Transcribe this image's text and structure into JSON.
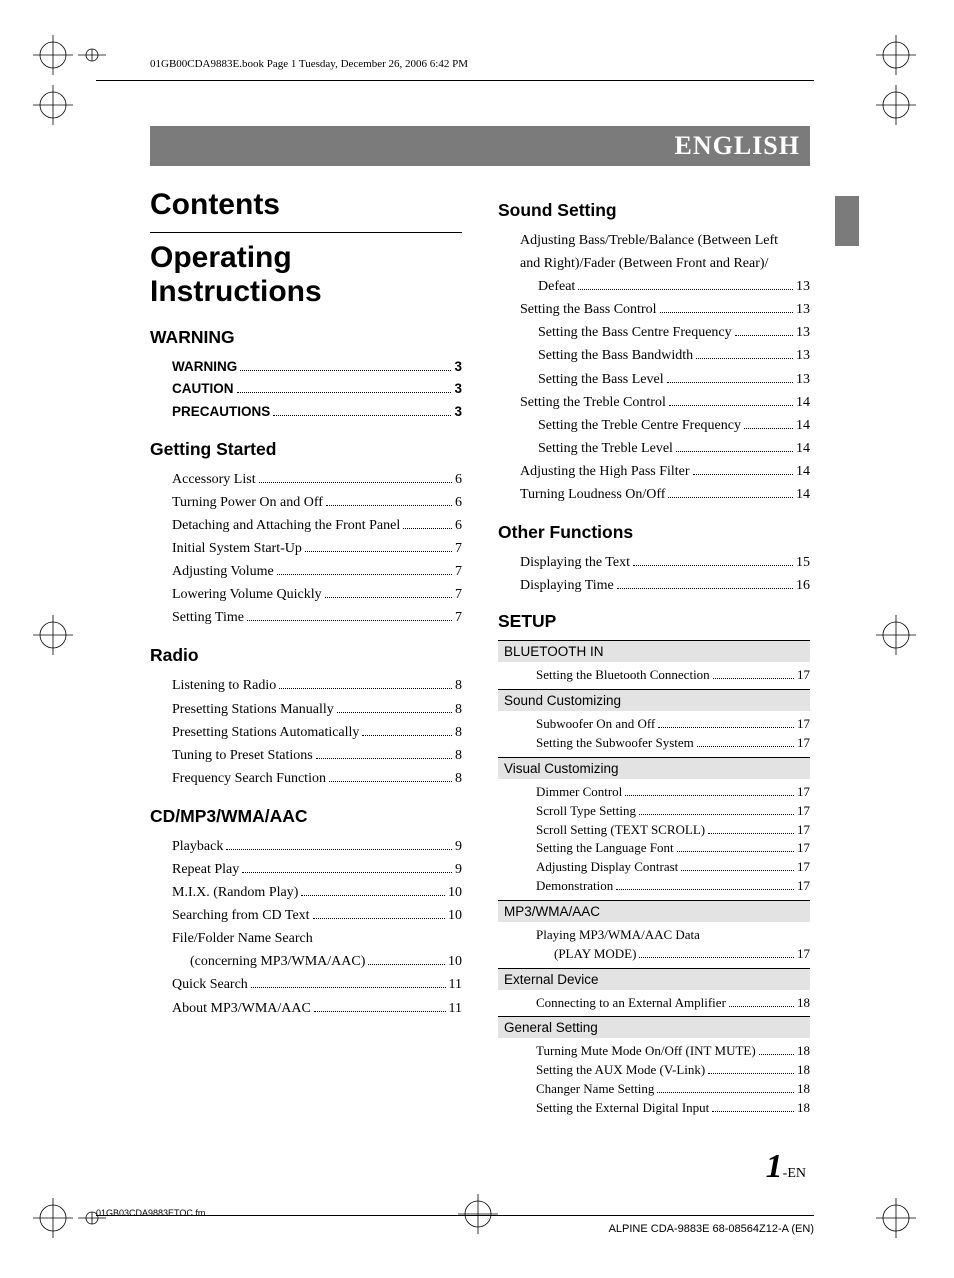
{
  "header_line": "01GB00CDA9883E.book  Page 1  Tuesday, December 26, 2006  6:42 PM",
  "english": "ENGLISH",
  "h_contents": "Contents",
  "h_op": "Operating Instructions",
  "footer_fn": "01GB03CDA9883ETOC.fm",
  "footer_model": "ALPINE CDA-9883E 68-08564Z12-A (EN)",
  "page_big": "1",
  "page_suf": "-EN",
  "left": [
    {
      "type": "sec",
      "label": "WARNING"
    },
    {
      "type": "toc",
      "rows": [
        {
          "bold": true,
          "txt": "WARNING",
          "pg": "3"
        },
        {
          "bold": true,
          "txt": "CAUTION",
          "pg": "3"
        },
        {
          "bold": true,
          "txt": "PRECAUTIONS",
          "pg": "3"
        }
      ]
    },
    {
      "type": "sec",
      "label": "Getting Started"
    },
    {
      "type": "toc",
      "rows": [
        {
          "txt": "Accessory List",
          "pg": "6"
        },
        {
          "txt": "Turning Power On and Off",
          "pg": "6"
        },
        {
          "txt": "Detaching and Attaching the Front Panel",
          "pg": "6"
        },
        {
          "txt": "Initial System Start-Up",
          "pg": "7"
        },
        {
          "txt": "Adjusting Volume",
          "pg": "7"
        },
        {
          "txt": "Lowering Volume Quickly",
          "pg": "7"
        },
        {
          "txt": "Setting Time",
          "pg": "7"
        }
      ]
    },
    {
      "type": "sec",
      "label": "Radio"
    },
    {
      "type": "toc",
      "rows": [
        {
          "txt": "Listening to Radio",
          "pg": "8"
        },
        {
          "txt": "Presetting Stations Manually",
          "pg": "8"
        },
        {
          "txt": "Presetting Stations Automatically",
          "pg": "8"
        },
        {
          "txt": "Tuning to Preset Stations",
          "pg": "8"
        },
        {
          "txt": "Frequency Search Function",
          "pg": "8"
        }
      ]
    },
    {
      "type": "sec",
      "label": "CD/MP3/WMA/AAC"
    },
    {
      "type": "toc",
      "rows": [
        {
          "txt": "Playback",
          "pg": "9"
        },
        {
          "txt": "Repeat Play",
          "pg": "9"
        },
        {
          "txt": "M.I.X. (Random Play)",
          "pg": "10"
        },
        {
          "txt": "Searching from CD Text",
          "pg": "10"
        },
        {
          "wrap": true,
          "txt1": "File/Folder Name Search",
          "txt2": "(concerning MP3/WMA/AAC)",
          "pg": "10"
        },
        {
          "txt": "Quick Search",
          "pg": "11"
        },
        {
          "txt": "About MP3/WMA/AAC",
          "pg": "11"
        }
      ]
    }
  ],
  "right_top": [
    {
      "type": "sec",
      "label": "Sound Setting"
    },
    {
      "type": "toc",
      "rows": [
        {
          "wrap": true,
          "txt1": "Adjusting Bass/Treble/Balance (Between Left",
          "txt2": "and Right)/Fader (Between Front and Rear)/",
          "txt3": "Defeat",
          "pg": "13"
        },
        {
          "txt": "Setting the Bass Control",
          "pg": "13"
        },
        {
          "indent": true,
          "txt": "Setting the Bass Centre Frequency",
          "pg": "13"
        },
        {
          "indent": true,
          "txt": "Setting the Bass Bandwidth",
          "pg": "13"
        },
        {
          "indent": true,
          "txt": "Setting the Bass Level",
          "pg": "13"
        },
        {
          "txt": "Setting the Treble Control",
          "pg": "14"
        },
        {
          "indent": true,
          "txt": "Setting the Treble Centre Frequency",
          "pg": "14"
        },
        {
          "indent": true,
          "txt": "Setting the Treble Level",
          "pg": "14"
        },
        {
          "txt": "Adjusting the High Pass Filter",
          "pg": "14"
        },
        {
          "txt": "Turning Loudness On/Off",
          "pg": "14"
        }
      ]
    },
    {
      "type": "sec",
      "label": "Other Functions"
    },
    {
      "type": "toc",
      "rows": [
        {
          "txt": "Displaying the Text",
          "pg": "15"
        },
        {
          "txt": "Displaying Time",
          "pg": "16"
        }
      ]
    }
  ],
  "setup": "SETUP",
  "setup_groups": [
    {
      "bar": "BLUETOOTH IN",
      "rows": [
        {
          "txt": "Setting the Bluetooth Connection",
          "pg": "17"
        }
      ]
    },
    {
      "bar": "Sound Customizing",
      "rows": [
        {
          "txt": "Subwoofer On and Off",
          "pg": "17"
        },
        {
          "txt": "Setting the Subwoofer System",
          "pg": "17"
        }
      ]
    },
    {
      "bar": "Visual Customizing",
      "rows": [
        {
          "txt": "Dimmer Control",
          "pg": "17"
        },
        {
          "txt": "Scroll Type Setting",
          "pg": "17"
        },
        {
          "txt": "Scroll Setting (TEXT SCROLL)",
          "pg": "17"
        },
        {
          "txt": "Setting the Language Font",
          "pg": "17"
        },
        {
          "txt": "Adjusting Display Contrast",
          "pg": "17"
        },
        {
          "txt": "Demonstration",
          "pg": "17"
        }
      ]
    },
    {
      "bar": "MP3/WMA/AAC",
      "rows": [
        {
          "wrap": true,
          "txt1": "Playing MP3/WMA/AAC Data",
          "txt2": "(PLAY MODE)",
          "pg": "17"
        }
      ]
    },
    {
      "bar": "External Device",
      "rows": [
        {
          "txt": "Connecting to an External Amplifier",
          "pg": "18"
        }
      ]
    },
    {
      "bar": "General Setting",
      "rows": [
        {
          "txt": "Turning Mute Mode On/Off (INT MUTE)",
          "pg": "18"
        },
        {
          "txt": "Setting the AUX Mode (V-Link)",
          "pg": "18"
        },
        {
          "txt": "Changer Name Setting",
          "pg": "18"
        },
        {
          "txt": "Setting the External Digital Input",
          "pg": "18"
        }
      ]
    }
  ]
}
